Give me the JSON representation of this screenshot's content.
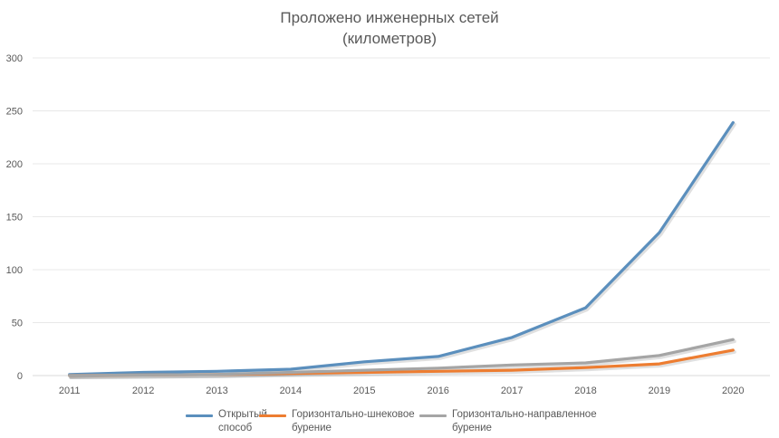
{
  "chart_data": {
    "type": "line",
    "title_lines": [
      "Проложено инженерных сетей",
      "(километров)"
    ],
    "xlabel": "",
    "ylabel": "",
    "categories": [
      "2011",
      "2012",
      "2013",
      "2014",
      "2015",
      "2016",
      "2017",
      "2018",
      "2019",
      "2020"
    ],
    "ylim": [
      0,
      300
    ],
    "yticks": [
      0,
      50,
      100,
      150,
      200,
      250,
      300
    ],
    "grid": true,
    "legend_position": "bottom",
    "series": [
      {
        "name_lines": [
          "Открытый",
          "способ"
        ],
        "color": "#5b8fbd",
        "values": [
          1,
          3,
          4,
          6,
          13,
          18,
          36,
          64,
          135,
          239
        ]
      },
      {
        "name_lines": [
          "Горизонтально-шнековое",
          "бурение"
        ],
        "color": "#ed7d31",
        "values": [
          0,
          0.5,
          1,
          2,
          3,
          4,
          5,
          7.5,
          11,
          24
        ]
      },
      {
        "name_lines": [
          "Горизонтально-направленное",
          "бурение"
        ],
        "color": "#a5a5a5",
        "values": [
          0,
          0.5,
          1,
          3,
          5,
          7,
          10,
          12,
          19,
          34
        ]
      }
    ]
  }
}
